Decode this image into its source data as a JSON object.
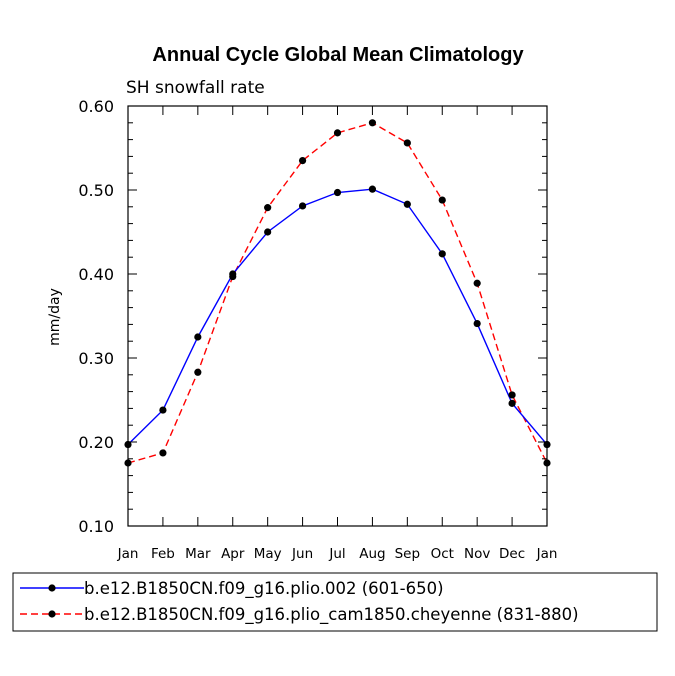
{
  "chart_data": {
    "type": "line",
    "title": "Annual Cycle Global Mean Climatology",
    "subtitle": "SH snowfall rate",
    "xlabel": "",
    "ylabel": "mm/day",
    "ylim": [
      0.1,
      0.6
    ],
    "yticks": [
      0.1,
      0.2,
      0.3,
      0.4,
      0.5,
      0.6
    ],
    "ytick_labels": [
      "0.10",
      "0.20",
      "0.30",
      "0.40",
      "0.50",
      "0.60"
    ],
    "categories": [
      "Jan",
      "Feb",
      "Mar",
      "Apr",
      "May",
      "Jun",
      "Jul",
      "Aug",
      "Sep",
      "Oct",
      "Nov",
      "Dec",
      "Jan"
    ],
    "grid": false,
    "legend_position": "bottom",
    "series": [
      {
        "name": "b.e12.B1850CN.f09_g16.plio.002 (601-650)",
        "color": "#0000ff",
        "line_style": "solid",
        "marker": "dot",
        "values": [
          0.197,
          0.238,
          0.325,
          0.4,
          0.45,
          0.481,
          0.497,
          0.501,
          0.483,
          0.424,
          0.341,
          0.246,
          0.197
        ]
      },
      {
        "name": "b.e12.B1850CN.f09_g16.plio_cam1850.cheyenne (831-880)",
        "color": "#ff0000",
        "line_style": "dashed",
        "marker": "dot",
        "values": [
          0.175,
          0.187,
          0.283,
          0.397,
          0.479,
          0.535,
          0.568,
          0.58,
          0.556,
          0.488,
          0.389,
          0.256,
          0.175
        ]
      }
    ]
  }
}
